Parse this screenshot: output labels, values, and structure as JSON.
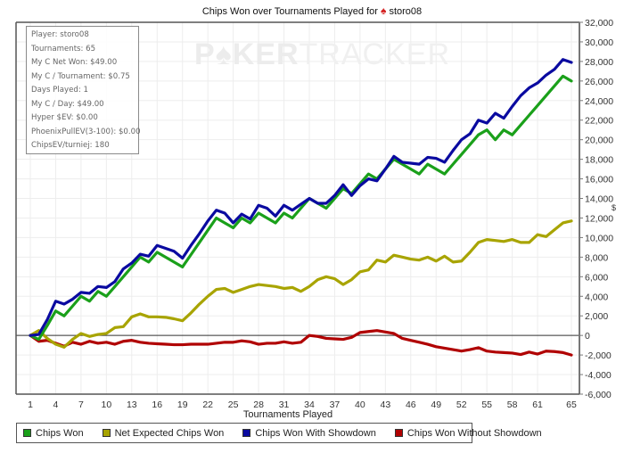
{
  "chart_data": {
    "type": "line",
    "title": "Chips Won over Tournaments Played for",
    "title_player": "storo08",
    "xlabel": "Tournaments Played",
    "ylabel": "$",
    "xlim": [
      1,
      65
    ],
    "ylim": [
      -6000,
      32000
    ],
    "grid": true,
    "legend_position": "bottom",
    "x_ticks": [
      1,
      4,
      7,
      10,
      13,
      16,
      19,
      22,
      25,
      28,
      31,
      34,
      37,
      40,
      43,
      46,
      49,
      52,
      55,
      58,
      61,
      65
    ],
    "y_ticks": [
      -6000,
      -4000,
      -2000,
      0,
      2000,
      4000,
      6000,
      8000,
      10000,
      12000,
      14000,
      16000,
      18000,
      20000,
      22000,
      24000,
      26000,
      28000,
      30000,
      32000
    ],
    "y_tick_labels": [
      "-6,000",
      "-4,000",
      "-2,000",
      "0",
      "2,000",
      "4,000",
      "6,000",
      "8,000",
      "10,000",
      "12,000",
      "14,000",
      "16,000",
      "18,000",
      "20,000",
      "22,000",
      "24,000",
      "26,000",
      "28,000",
      "30,000",
      "32,000"
    ],
    "x": [
      1,
      2,
      3,
      4,
      5,
      6,
      7,
      8,
      9,
      10,
      11,
      12,
      13,
      14,
      15,
      16,
      17,
      18,
      19,
      20,
      21,
      22,
      23,
      24,
      25,
      26,
      27,
      28,
      29,
      30,
      31,
      32,
      33,
      34,
      35,
      36,
      37,
      38,
      39,
      40,
      41,
      42,
      43,
      44,
      45,
      46,
      47,
      48,
      49,
      50,
      51,
      52,
      53,
      54,
      55,
      56,
      57,
      58,
      59,
      60,
      61,
      62,
      63,
      64,
      65
    ],
    "series": [
      {
        "name": "Chips Won",
        "color": "#1aa01a",
        "values": [
          0,
          -400,
          1000,
          2500,
          2000,
          3000,
          4000,
          3500,
          4500,
          4000,
          5000,
          6000,
          7000,
          8000,
          7500,
          8500,
          8000,
          7500,
          7000,
          8250,
          9500,
          10750,
          12000,
          11500,
          11000,
          12000,
          11500,
          12500,
          12000,
          11500,
          12500,
          12000,
          13000,
          14000,
          13500,
          13000,
          14000,
          15000,
          14500,
          15500,
          16500,
          16000,
          17000,
          18000,
          17500,
          17000,
          16500,
          17500,
          17000,
          16500,
          17500,
          18500,
          19500,
          20500,
          21000,
          20000,
          21000,
          20500,
          21500,
          22500,
          23500,
          24500,
          25500,
          26500,
          26000
        ]
      },
      {
        "name": "Net Expected Chips Won",
        "color": "#a8a400",
        "values": [
          0,
          500,
          -300,
          -900,
          -1200,
          -400,
          200,
          -100,
          100,
          200,
          800,
          900,
          1900,
          2200,
          1900,
          1900,
          1850,
          1700,
          1500,
          2300,
          3200,
          4000,
          4700,
          4800,
          4400,
          4700,
          5000,
          5200,
          5100,
          5000,
          4800,
          4900,
          4500,
          5000,
          5700,
          6000,
          5800,
          5200,
          5700,
          6500,
          6700,
          7700,
          7500,
          8200,
          8000,
          7800,
          7700,
          8000,
          7600,
          8100,
          7500,
          7600,
          8500,
          9500,
          9800,
          9700,
          9600,
          9800,
          9500,
          9500,
          10300,
          10100,
          10800,
          11500,
          11700
        ]
      },
      {
        "name": "Chips Won With Showdown",
        "color": "#0a0aa0",
        "values": [
          0,
          100,
          1600,
          3500,
          3200,
          3700,
          4400,
          4300,
          5000,
          4900,
          5500,
          6800,
          7400,
          8300,
          8100,
          9200,
          8900,
          8600,
          7900,
          9200,
          10400,
          11700,
          12800,
          12500,
          11500,
          12400,
          11900,
          13300,
          13000,
          12200,
          13300,
          12800,
          13400,
          14000,
          13500,
          13500,
          14300,
          15400,
          14300,
          15300,
          16000,
          15800,
          17000,
          18300,
          17700,
          17600,
          17500,
          18200,
          18100,
          17700,
          18900,
          20000,
          20600,
          22000,
          21700,
          22700,
          22200,
          23400,
          24500,
          25300,
          25800,
          26600,
          27200,
          28200,
          27900
        ]
      },
      {
        "name": "Chips Won Without Showdown",
        "color": "#b00000",
        "values": [
          0,
          -600,
          -500,
          -800,
          -1100,
          -700,
          -900,
          -600,
          -800,
          -700,
          -900,
          -600,
          -500,
          -700,
          -800,
          -850,
          -900,
          -950,
          -950,
          -900,
          -900,
          -900,
          -800,
          -700,
          -700,
          -550,
          -650,
          -900,
          -800,
          -800,
          -650,
          -800,
          -700,
          0,
          -100,
          -300,
          -350,
          -400,
          -200,
          300,
          400,
          500,
          350,
          200,
          -300,
          -500,
          -700,
          -900,
          -1150,
          -1300,
          -1450,
          -1600,
          -1450,
          -1250,
          -1600,
          -1700,
          -1750,
          -1800,
          -1950,
          -1700,
          -1900,
          -1600,
          -1650,
          -1750,
          -2000
        ]
      }
    ]
  },
  "stats_box": {
    "lines": [
      "Player: storo08",
      "Tournaments: 65",
      "My C Net Won: $49.00",
      "My C / Tournament: $0.75",
      "Days Played: 1",
      "My C / Day: $49.00",
      "Hyper $EV: $0.00",
      "PhoenixPullEV(3-100): $0.00",
      "ChipsEV/turniej: 180"
    ]
  },
  "watermark": {
    "bold_part": "P♠KER",
    "thin_part": "TRACKER"
  },
  "title_icon": "spade-icon",
  "y_unit_label": "$"
}
